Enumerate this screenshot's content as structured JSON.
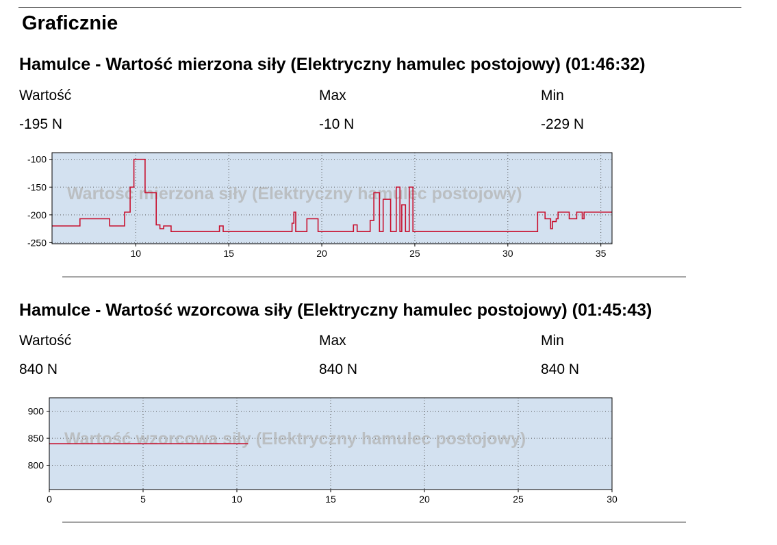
{
  "page": {
    "heading": "Graficznie"
  },
  "sections": [
    {
      "title": "Hamulce - Wartość mierzona siły (Elektryczny hamulec postojowy) (01:46:32)",
      "stats": {
        "value_label": "Wartość",
        "value": "-195 N",
        "max_label": "Max",
        "max": "-10 N",
        "min_label": "Min",
        "min": "-229 N"
      }
    },
    {
      "title": "Hamulce - Wartość wzorcowa siły (Elektryczny hamulec postojowy) (01:45:43)",
      "stats": {
        "value_label": "Wartość",
        "value": "840 N",
        "max_label": "Max",
        "max": "840 N",
        "min_label": "Min",
        "min": "840 N"
      }
    }
  ],
  "colors": {
    "plot_bg": "#d3e1f0",
    "line": "#c8102e",
    "watermark": "#b3b3b3"
  },
  "chart_data": [
    {
      "type": "line",
      "watermark": "Wartość mierzona siły (Elektryczny hamulec postojowy)",
      "xlim": [
        5.5,
        35.6
      ],
      "ylim": [
        -252,
        -88
      ],
      "xticks": [
        10,
        15,
        20,
        25,
        30,
        35
      ],
      "yticks": [
        -100,
        -150,
        -200,
        -250
      ],
      "grid": true,
      "series": [
        {
          "x": [
            5.5,
            6.5,
            7.0,
            8.5,
            8.6,
            9.3,
            9.4,
            9.6,
            9.7,
            9.9,
            10.0,
            10.5,
            10.6,
            11.0,
            11.1,
            11.3,
            11.5,
            11.8,
            11.9,
            14.3,
            14.5,
            14.7,
            18.2,
            18.4,
            18.5,
            18.6,
            19.0,
            19.2,
            19.6,
            19.8,
            21.5,
            21.7,
            21.9,
            22.5,
            22.6,
            22.8,
            22.9,
            23.1,
            23.3,
            23.5,
            23.7,
            24.0,
            24.1,
            24.2,
            24.3,
            24.4,
            24.5,
            24.7,
            24.8,
            24.9,
            25.0,
            31.5,
            31.6,
            31.9,
            32.0,
            32.3,
            32.4,
            32.6,
            32.7,
            33.2,
            33.3,
            33.5,
            33.7,
            33.8,
            34.0,
            34.1,
            34.3,
            35.6
          ],
          "y": [
            -220,
            -220,
            -207,
            -207,
            -220,
            -220,
            -195,
            -195,
            -150,
            -100,
            -100,
            -160,
            -160,
            -160,
            -218,
            -225,
            -220,
            -220,
            -230,
            -230,
            -220,
            -230,
            -230,
            -215,
            -195,
            -230,
            -230,
            -207,
            -207,
            -230,
            -230,
            -218,
            -230,
            -230,
            -210,
            -160,
            -160,
            -230,
            -172,
            -172,
            -230,
            -150,
            -150,
            -230,
            -182,
            -182,
            -230,
            -150,
            -150,
            -230,
            -230,
            -230,
            -195,
            -195,
            -207,
            -225,
            -212,
            -207,
            -195,
            -195,
            -207,
            -207,
            -195,
            -195,
            -207,
            -195,
            -195,
            -195
          ]
        }
      ]
    },
    {
      "type": "line",
      "watermark": "Wartość wzorcowa siły (Elektryczny hamulec postojowy)",
      "xlim": [
        0,
        30
      ],
      "ylim": [
        755,
        925
      ],
      "xticks": [
        0,
        5,
        10,
        15,
        20,
        25,
        30
      ],
      "yticks": [
        900,
        850,
        800
      ],
      "grid": true,
      "series": [
        {
          "x": [
            0,
            10.6
          ],
          "y": [
            840,
            840
          ]
        }
      ]
    }
  ]
}
